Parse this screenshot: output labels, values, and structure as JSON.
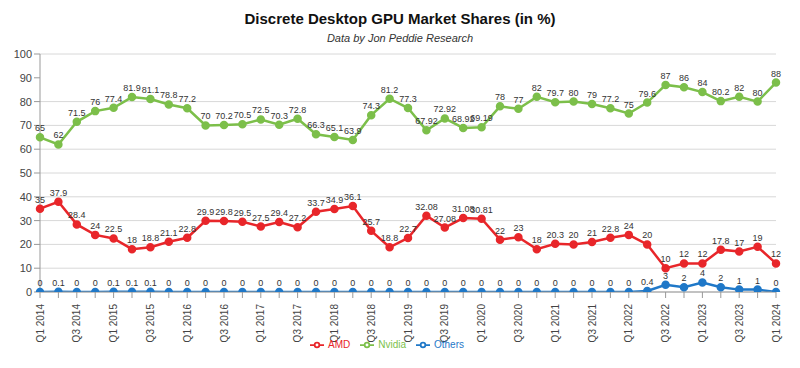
{
  "chart_data": {
    "type": "line",
    "title": "Discrete Desktop GPU Market Shares (in %)",
    "subtitle": "Data by Jon Peddie Research",
    "categories": [
      "Q1 2014",
      null,
      "Q3 2014",
      null,
      "Q1 2015",
      null,
      "Q3 2015",
      null,
      "Q1 2016",
      null,
      "Q3 2016",
      null,
      "Q1 2017",
      null,
      "Q3 2017",
      null,
      "Q1 2018",
      null,
      "Q3 2018",
      null,
      "Q1 2019",
      null,
      "Q3 2019",
      null,
      "Q1 2020",
      null,
      "Q3 2020",
      null,
      "Q1 2021",
      null,
      "Q3 2021",
      null,
      "Q1 2022",
      null,
      "Q3 2022",
      null,
      "Q1 2023",
      null,
      "Q3 2023",
      null,
      "Q1 2024"
    ],
    "series": [
      {
        "name": "AMD",
        "color": "#e8262a",
        "marker": "circle",
        "line_style": "solid",
        "values": [
          35,
          37.9,
          28.4,
          24,
          22.5,
          18,
          18.8,
          21.1,
          22.8,
          29.9,
          29.8,
          29.5,
          27.5,
          29.4,
          27.2,
          33.7,
          34.9,
          36.1,
          25.7,
          18.8,
          22.7,
          32.08,
          27.08,
          31.08,
          30.81,
          22,
          23,
          18,
          20.3,
          20,
          21,
          22.8,
          24,
          20,
          10,
          12,
          12,
          17.8,
          17,
          19,
          12
        ]
      },
      {
        "name": "Nvidia",
        "color": "#7cbf4a",
        "marker": "circle",
        "line_style": "solid",
        "values": [
          65,
          62,
          71.5,
          76,
          77.4,
          81.9,
          81.1,
          78.8,
          77.2,
          70,
          70.2,
          70.5,
          72.5,
          70.3,
          72.8,
          66.3,
          65.1,
          63.9,
          74.3,
          81.2,
          77.3,
          67.92,
          72.92,
          68.92,
          69.19,
          78,
          77,
          82,
          79.7,
          80,
          79,
          77.2,
          75,
          79.6,
          87,
          86,
          84,
          80.2,
          82,
          80,
          88
        ]
      },
      {
        "name": "Others",
        "color": "#1f78c8",
        "marker": "circle",
        "line_style": "solid",
        "values": [
          0,
          0.1,
          0,
          0,
          0.1,
          0.1,
          0.1,
          0,
          0,
          0,
          0,
          0,
          0,
          0,
          0,
          0,
          0,
          0,
          0,
          0,
          0,
          0,
          0,
          0,
          0,
          0,
          0,
          0,
          0,
          0,
          0,
          0,
          0,
          0.4,
          3,
          2,
          4,
          2,
          1,
          1,
          0
        ]
      }
    ],
    "ylim": [
      0,
      100
    ],
    "yticks": [
      0,
      10,
      20,
      30,
      40,
      50,
      60,
      70,
      80,
      90,
      100
    ],
    "grid": true,
    "legend": "bottom",
    "data_labels": true
  }
}
